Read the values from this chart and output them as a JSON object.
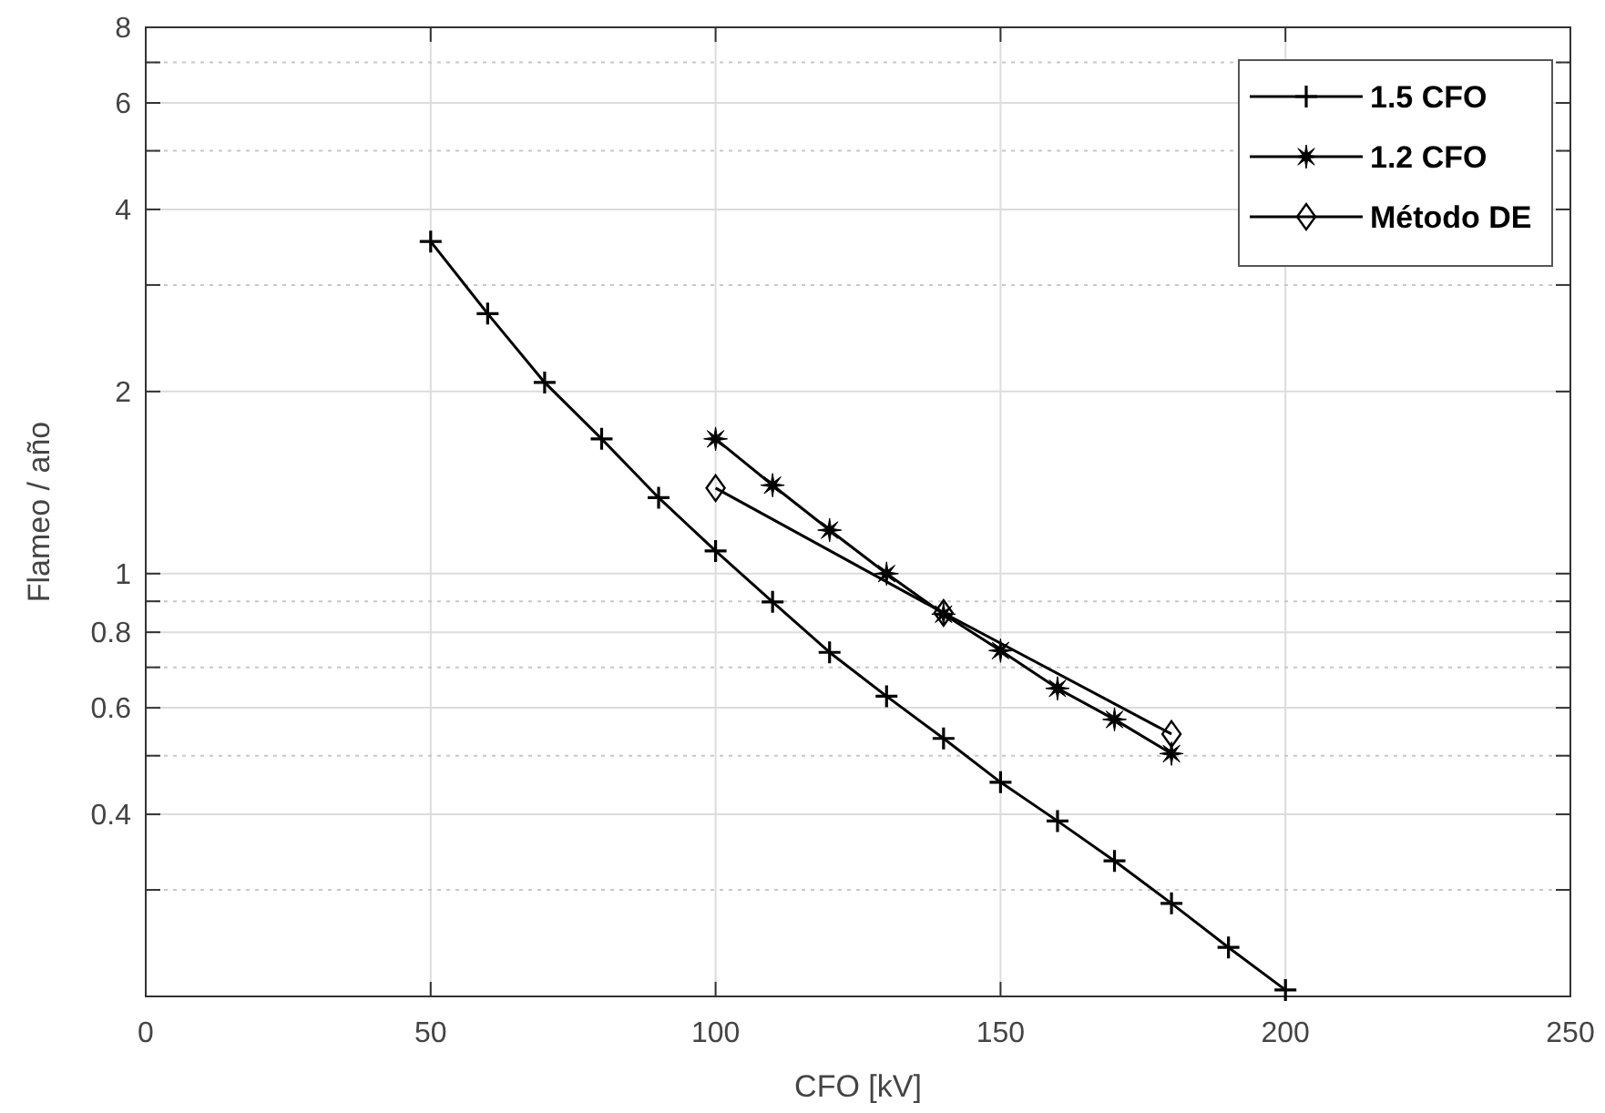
{
  "chart_data": {
    "type": "line",
    "xlabel": "CFO [kV]",
    "ylabel": "Flameo / año",
    "log": "y",
    "grid": true,
    "legend": "top right",
    "line_style": "solid",
    "xlim": [
      0,
      250
    ],
    "xticks": [
      0,
      50,
      100,
      150,
      200,
      250
    ],
    "ylim": [
      0.2,
      8
    ],
    "yticks": [
      {
        "value": 0.3,
        "label": null
      },
      0.4,
      {
        "value": 0.5,
        "label": null
      },
      0.6,
      {
        "value": 0.7,
        "label": null
      },
      0.8,
      {
        "value": 0.9,
        "label": null
      },
      1,
      2,
      {
        "value": 3,
        "label": null
      },
      4,
      {
        "value": 5,
        "label": null
      },
      6,
      {
        "value": 7,
        "label": null
      },
      8
    ],
    "series": [
      {
        "name": "1.5 CFO",
        "color": "#000000",
        "marker": "cross",
        "x": [
          50,
          60,
          70,
          80,
          90,
          100,
          110,
          120,
          130,
          140,
          150,
          160,
          170,
          180,
          190,
          200
        ],
        "values": [
          3.54,
          2.69,
          2.07,
          1.67,
          1.335,
          1.09,
          0.898,
          0.741,
          0.627,
          0.534,
          0.452,
          0.39,
          0.335,
          0.285,
          0.241,
          0.205
        ]
      },
      {
        "name": "1.2 CFO",
        "color": "#000000",
        "marker": "star",
        "x": [
          100,
          110,
          120,
          130,
          140,
          150,
          160,
          170,
          180
        ],
        "values": [
          1.67,
          1.4,
          1.18,
          1.0,
          0.857,
          0.746,
          0.646,
          0.574,
          0.504
        ]
      },
      {
        "name": "Método DE",
        "color": "#000000",
        "marker": "diamond",
        "x": [
          100,
          140,
          180
        ],
        "values": [
          1.385,
          0.861,
          0.543
        ]
      }
    ]
  }
}
